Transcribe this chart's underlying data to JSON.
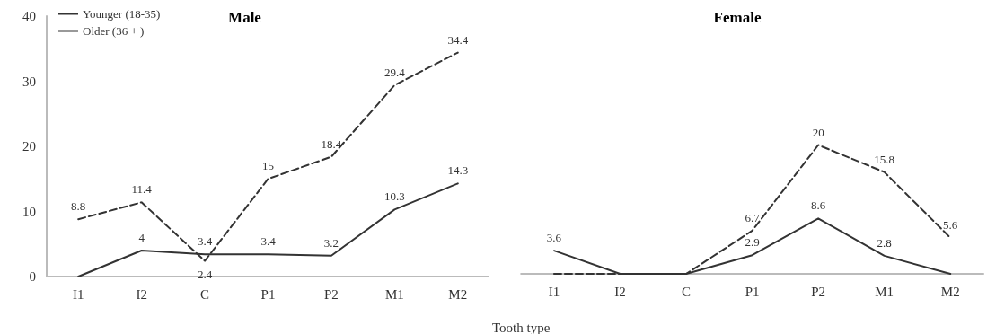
{
  "chart_data": [
    {
      "type": "line",
      "title": "Male",
      "categories": [
        "I1",
        "I2",
        "C",
        "P1",
        "P2",
        "M1",
        "M2"
      ],
      "ylim": [
        0,
        40
      ],
      "yticks": [
        0,
        10,
        20,
        30,
        40
      ],
      "grid": false,
      "legend": "top left",
      "marker": "none",
      "tick_labels": "xy",
      "series": [
        {
          "name": "Younger (18-35)",
          "color": "#333333",
          "line_style": "solid",
          "values": [
            0,
            4,
            3.4,
            3.4,
            3.2,
            10.3,
            14.3
          ],
          "value_labels": [
            null,
            "4",
            "3.4",
            "3.4",
            "3.2",
            "10.3",
            "14.3"
          ]
        },
        {
          "name": "Older (36 + )",
          "color": "#333333",
          "line_style": "dashed",
          "values": [
            8.8,
            11.4,
            2.4,
            15,
            18.4,
            29.4,
            34.4
          ],
          "value_labels": [
            "8.8",
            "11.4",
            "2.4",
            "15",
            "18.4",
            "29.4",
            "34.4"
          ]
        }
      ]
    },
    {
      "type": "line",
      "title": "Female",
      "xlabel": "Tooth type",
      "categories": [
        "I1",
        "I2",
        "C",
        "P1",
        "P2",
        "M1",
        "M2"
      ],
      "ylim": [
        0,
        40
      ],
      "grid": false,
      "legend": false,
      "marker": "none",
      "tick_labels": "x",
      "series": [
        {
          "color": "#333333",
          "line_style": "solid",
          "values": [
            3.6,
            0,
            0,
            2.9,
            8.6,
            2.8,
            0
          ],
          "value_labels": [
            "3.6",
            null,
            null,
            "2.9",
            "8.6",
            "2.8",
            null
          ]
        },
        {
          "color": "#333333",
          "line_style": "dashed",
          "values": [
            0,
            0,
            0,
            6.7,
            20,
            15.8,
            5.6
          ],
          "value_labels": [
            null,
            null,
            null,
            "6.7",
            "20",
            "15.8",
            "5.6"
          ]
        }
      ]
    }
  ]
}
